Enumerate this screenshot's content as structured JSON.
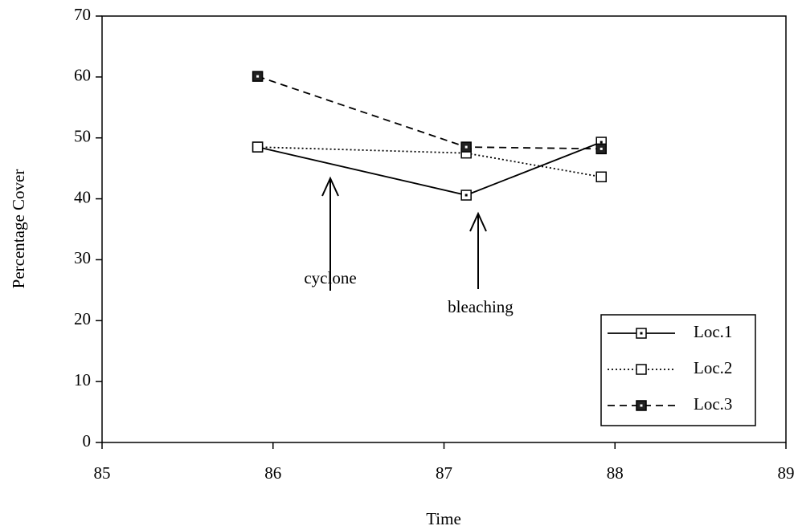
{
  "chart_data": {
    "type": "line",
    "x_label": "Time",
    "y_label": "Percentage Cover",
    "xlim": [
      85,
      89
    ],
    "xticks": [
      85,
      86,
      87,
      88,
      89
    ],
    "ylim": [
      0,
      70
    ],
    "yticks": [
      0,
      10,
      20,
      30,
      40,
      50,
      60,
      70
    ],
    "legend": "bottom-right",
    "annotations": [
      "cyclone",
      "bleaching"
    ],
    "series": [
      {
        "name": "Loc.1",
        "color": "#000000",
        "line_style": "solid",
        "marker": "dotted-square",
        "x": [
          85.91,
          87.13,
          87.92
        ],
        "values": [
          48.5,
          40.6,
          49.3
        ]
      },
      {
        "name": "Loc.2",
        "color": "#000000",
        "line_style": "dotted",
        "marker": "open-square",
        "x": [
          85.91,
          87.13,
          87.92
        ],
        "values": [
          48.5,
          47.5,
          43.6
        ]
      },
      {
        "name": "Loc.3",
        "color": "#000000",
        "line_style": "dashed",
        "marker": "filled-square",
        "x": [
          85.91,
          87.13,
          87.92
        ],
        "values": [
          60.1,
          48.5,
          48.2
        ]
      }
    ]
  }
}
